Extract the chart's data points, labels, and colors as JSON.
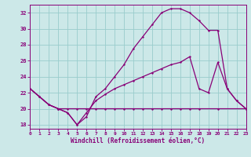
{
  "xlabel": "Windchill (Refroidissement éolien,°C)",
  "bg_color": "#cce8e8",
  "grid_color": "#99cccc",
  "line_color": "#880077",
  "xlim": [
    0,
    23
  ],
  "ylim": [
    17.5,
    33.0
  ],
  "yticks": [
    18,
    20,
    22,
    24,
    26,
    28,
    30,
    32
  ],
  "xticks": [
    0,
    1,
    2,
    3,
    4,
    5,
    6,
    7,
    8,
    9,
    10,
    11,
    12,
    13,
    14,
    15,
    16,
    17,
    18,
    19,
    20,
    21,
    22,
    23
  ],
  "curve_big_x": [
    0,
    1,
    2,
    3,
    4,
    5,
    6,
    7,
    8,
    9,
    10,
    11,
    12,
    13,
    14,
    15,
    16,
    17,
    18,
    19,
    20,
    21,
    22,
    23
  ],
  "curve_big_y": [
    22.5,
    21.5,
    20.5,
    20.0,
    19.5,
    18.0,
    19.0,
    21.5,
    22.5,
    24.0,
    25.5,
    27.5,
    29.0,
    30.5,
    32.0,
    32.5,
    32.5,
    32.0,
    31.0,
    29.8,
    29.8,
    22.5,
    21.0,
    20.0
  ],
  "curve_diag_x": [
    0,
    1,
    2,
    3,
    4,
    5,
    6,
    7,
    8,
    9,
    10,
    11,
    12,
    13,
    14,
    15,
    16,
    17,
    18,
    19,
    20,
    21,
    22,
    23
  ],
  "curve_diag_y": [
    22.5,
    21.5,
    20.5,
    20.0,
    19.5,
    18.0,
    19.5,
    21.0,
    21.8,
    22.5,
    23.0,
    23.5,
    24.0,
    24.5,
    25.0,
    25.5,
    25.8,
    26.5,
    22.5,
    22.0,
    25.8,
    22.5,
    21.0,
    20.0
  ],
  "line_flat_x": [
    0,
    1,
    2,
    3,
    4,
    5,
    6,
    7,
    8,
    9,
    10,
    11,
    12,
    13,
    14,
    15,
    16,
    17,
    18,
    20,
    23
  ],
  "line_flat_y": [
    22.5,
    21.5,
    20.5,
    20.0,
    20.0,
    20.0,
    20.0,
    20.0,
    20.0,
    20.0,
    20.0,
    20.0,
    20.0,
    20.0,
    20.0,
    20.0,
    20.0,
    20.0,
    20.0,
    20.0,
    20.0
  ]
}
